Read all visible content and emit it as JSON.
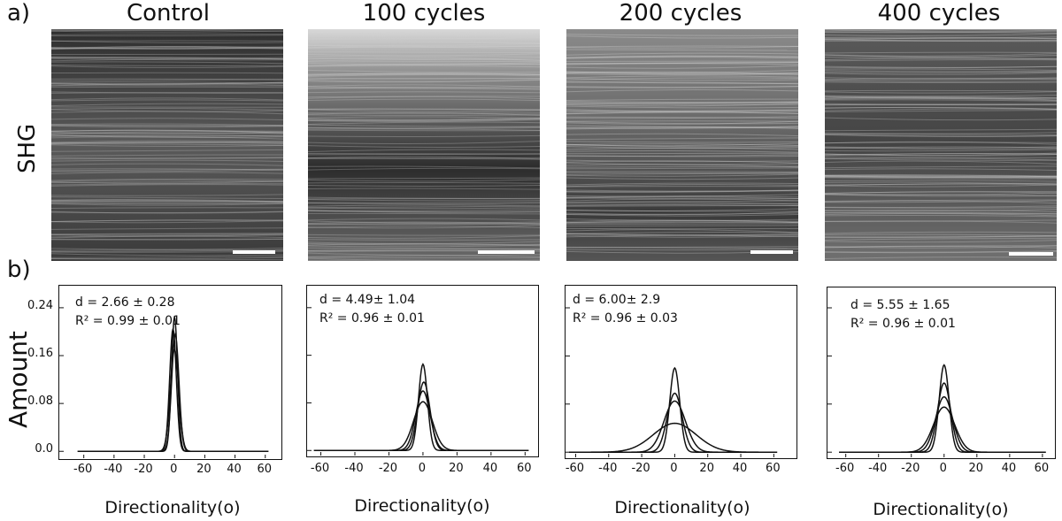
{
  "panel_a_label": "a)",
  "panel_b_label": "b)",
  "row_label": "SHG",
  "column_titles": [
    "Control",
    "100 cycles",
    "200 cycles",
    "400 cycles"
  ],
  "y_axis_title": "Amount",
  "x_axis_title": "Directionality(o)",
  "colors": {
    "curve": "#111111",
    "frame": "#111111"
  },
  "chart_data": [
    {
      "type": "line",
      "title": "Control",
      "xlabel": "Directionality(o)",
      "ylabel": "Amount",
      "xlim": [
        -68,
        66
      ],
      "ylim": [
        -0.01,
        0.265
      ],
      "xticks": [
        -60,
        -40,
        -20,
        0,
        20,
        40,
        60
      ],
      "xtick_labels": [
        "-60",
        "-40",
        "-20",
        "0",
        "20",
        "40",
        "60"
      ],
      "yticks": [
        0.0,
        0.08,
        0.16,
        0.24
      ],
      "ytick_labels": [
        "0.0",
        "0.08",
        "0.16",
        "0.24"
      ],
      "stats": {
        "d": "d = 2.66 ± 0.28",
        "r2": "R² = 0.99 ± 0.01"
      },
      "series": [
        {
          "peak": 0.225,
          "width": 2.0,
          "center": 0.0
        },
        {
          "peak": 0.205,
          "width": 2.2,
          "center": -1.0
        },
        {
          "peak": 0.195,
          "width": 2.4,
          "center": 0.5
        },
        {
          "peak": 0.17,
          "width": 2.8,
          "center": 0.0
        }
      ]
    },
    {
      "type": "line",
      "title": "100 cycles",
      "xlabel": "Directionality(o)",
      "ylabel": "Amount",
      "xlim": [
        -66,
        64
      ],
      "ylim": [
        -0.01,
        0.265
      ],
      "xticks": [
        -60,
        -40,
        -20,
        0,
        20,
        40,
        60
      ],
      "xtick_labels": [
        "-60",
        "-40",
        "-20",
        "0",
        "20",
        "40",
        "60"
      ],
      "yticks": [
        0.0,
        0.08,
        0.16,
        0.24
      ],
      "ytick_labels": [],
      "stats": {
        "d": "d = 4.49± 1.04",
        "r2": "R² = 0.96 ± 0.01"
      },
      "series": [
        {
          "peak": 0.145,
          "width": 2.6,
          "center": 0.0
        },
        {
          "peak": 0.115,
          "width": 3.6,
          "center": 0.5
        },
        {
          "peak": 0.1,
          "width": 4.2,
          "center": 0.0
        },
        {
          "peak": 0.082,
          "width": 5.5,
          "center": 0.0
        }
      ]
    },
    {
      "type": "line",
      "title": "200 cycles",
      "xlabel": "Directionality(o)",
      "ylabel": "Amount",
      "xlim": [
        -64,
        70
      ],
      "ylim": [
        -0.01,
        0.265
      ],
      "xticks": [
        -60,
        -40,
        -20,
        0,
        20,
        40,
        60
      ],
      "xtick_labels": [
        "-60",
        "-40",
        "-20",
        "0",
        "20",
        "40",
        "60"
      ],
      "yticks": [
        0.0,
        0.08,
        0.16,
        0.24
      ],
      "ytick_labels": [],
      "stats": {
        "d": "d = 6.00± 2.9",
        "r2": "R² = 0.96 ± 0.03"
      },
      "series": [
        {
          "peak": 0.14,
          "width": 3.0,
          "center": 0.0
        },
        {
          "peak": 0.098,
          "width": 4.5,
          "center": 0.0
        },
        {
          "peak": 0.085,
          "width": 6.5,
          "center": 0.0
        },
        {
          "peak": 0.048,
          "width": 13.0,
          "center": 0.0
        }
      ]
    },
    {
      "type": "line",
      "title": "400 cycles",
      "xlabel": "Directionality(o)",
      "ylabel": "Amount",
      "xlim": [
        -69,
        66
      ],
      "ylim": [
        -0.01,
        0.265
      ],
      "xticks": [
        -60,
        -40,
        -20,
        0,
        20,
        40,
        60
      ],
      "xtick_labels": [
        "-60",
        "-40",
        "-20",
        "0",
        "20",
        "40",
        "60"
      ],
      "yticks": [
        0.0,
        0.08,
        0.16,
        0.24
      ],
      "ytick_labels": [],
      "stats": {
        "d": "d = 5.55 ± 1.65",
        "r2": "R² = 0.96 ± 0.01"
      },
      "series": [
        {
          "peak": 0.145,
          "width": 3.0,
          "center": 0.0
        },
        {
          "peak": 0.115,
          "width": 4.0,
          "center": 0.0
        },
        {
          "peak": 0.092,
          "width": 5.2,
          "center": 0.0
        },
        {
          "peak": 0.075,
          "width": 6.5,
          "center": 0.0
        }
      ]
    }
  ]
}
